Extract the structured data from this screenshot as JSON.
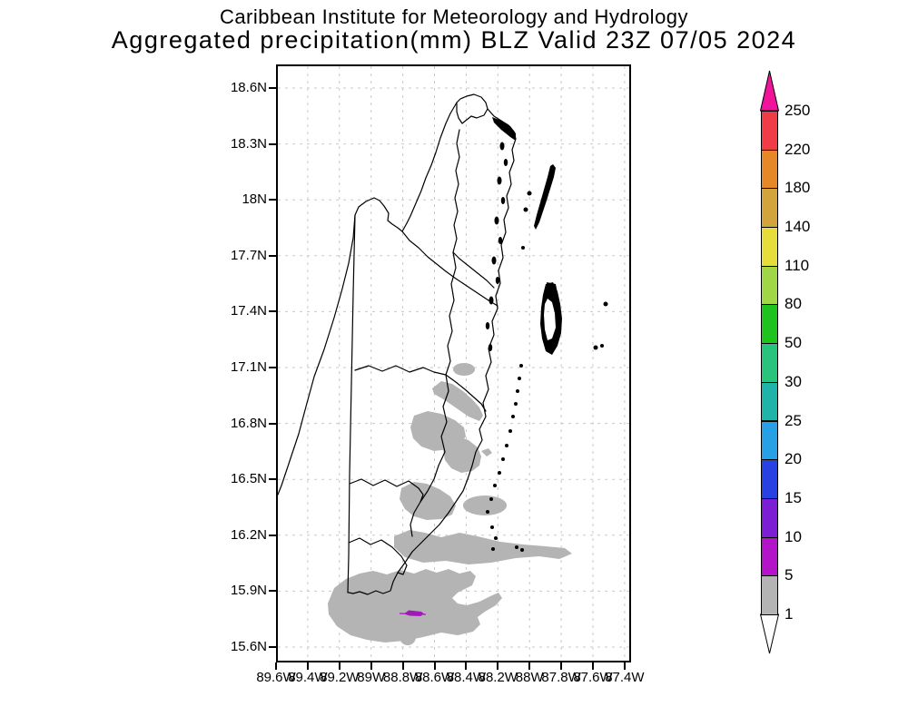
{
  "header": {
    "line1": "Caribbean Institute for Meteorology and Hydrology",
    "line2": "Aggregated precipitation(mm) BLZ Valid 23Z 07/05 2024"
  },
  "map": {
    "region_code": "BLZ",
    "y_ticks": [
      "18.6N",
      "18.3N",
      "18N",
      "17.7N",
      "17.4N",
      "17.1N",
      "16.8N",
      "16.5N",
      "16.2N",
      "15.9N",
      "15.6N"
    ],
    "x_ticks": [
      "89.6W",
      "89.4W",
      "89.2W",
      "89W",
      "88.8W",
      "88.6W",
      "88.4W",
      "88.2W",
      "88W",
      "87.8W",
      "87.6W",
      "87.4W"
    ]
  },
  "colorbar": {
    "unit": "mm",
    "levels_bottom_to_top": [
      "1",
      "5",
      "10",
      "15",
      "20",
      "25",
      "30",
      "50",
      "80",
      "110",
      "140",
      "180",
      "220",
      "250"
    ],
    "segment_colors_bottom_to_top": [
      "#b4b4b4",
      "#b414c8",
      "#7d1ed7",
      "#2841e1",
      "#28a0e6",
      "#1eb4aa",
      "#28c37d",
      "#1ec31e",
      "#a0d746",
      "#e6dc3c",
      "#d2a53c",
      "#e68728",
      "#f03c46"
    ],
    "above_max_arrow_color": "#f0149b",
    "below_min_arrow_color": "#ffffff"
  },
  "map_colors": {
    "precip_1_to_5_fill": "#b4b4b4",
    "precip_5_to_10_streak": "#a019b9",
    "outline": "#000000",
    "grid": "#c8c8c8"
  }
}
